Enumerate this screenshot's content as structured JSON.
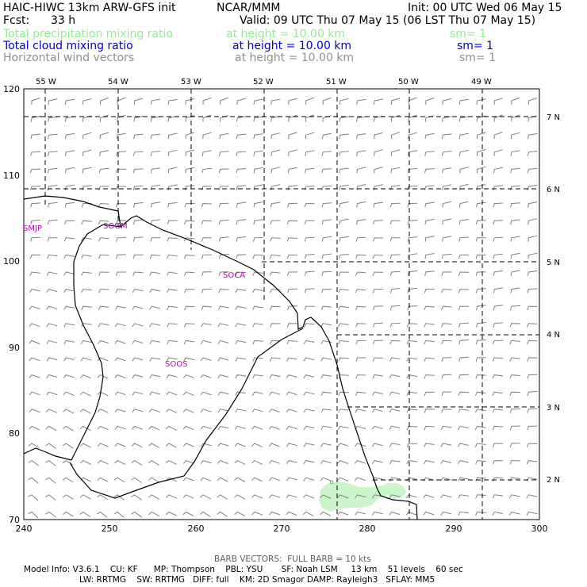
{
  "header": {
    "title_left": "HAIC-HIWC 13km ARW-GFS init",
    "title_center": "NCAR/MMM",
    "init": "Init: 00 UTC Wed 06 May 15",
    "fcst_label": "Fcst:",
    "fcst_value": "33 h",
    "valid": "Valid: 09 UTC Thu 07 May 15 (06 LST Thu 07 May 15)"
  },
  "fields": [
    {
      "name": "Total precipitation mixing ratio",
      "height": "at height = 10.00 km",
      "sm": "sm= 1",
      "color": "#90ee90"
    },
    {
      "name": "Total cloud mixing ratio",
      "height": "at height = 10.00 km",
      "sm": "sm= 1",
      "color": "#0000cc"
    },
    {
      "name": "Horizontal wind vectors",
      "height": "at height = 10.00 km",
      "sm": "sm= 1",
      "color": "#909090"
    }
  ],
  "map": {
    "lon_labels": [
      "55 W",
      "54 W",
      "53 W",
      "52 W",
      "51 W",
      "50 W",
      "49 W"
    ],
    "lat_labels": [
      "7 N",
      "6 N",
      "5 N",
      "4 N",
      "3 N",
      "2 N"
    ],
    "x_ticks": [
      "240",
      "250",
      "260",
      "270",
      "280",
      "290",
      "300"
    ],
    "y_ticks": [
      "70",
      "80",
      "90",
      "100",
      "110",
      "120"
    ],
    "stations": [
      "SMJP",
      "SOGM",
      "SOCA",
      "SOOS"
    ],
    "precip_color": "#ccf5cc",
    "coast_color": "#000000",
    "barb_color": "#808080",
    "station_color": "#c000c0"
  },
  "footer": {
    "barb_note": "BARB VECTORS:  FULL BARB = 10 kts",
    "model_line1": "Model Info: V3.6.1    CU: KF      MP: Thompson    PBL: YSU       SF: Noah LSM     13 km    51 levels    60 sec",
    "model_line2": "LW: RRTMG    SW: RRTMG   DIFF: full    KM: 2D Smagor DAMP: Rayleigh3   SFLAY: MM5"
  }
}
